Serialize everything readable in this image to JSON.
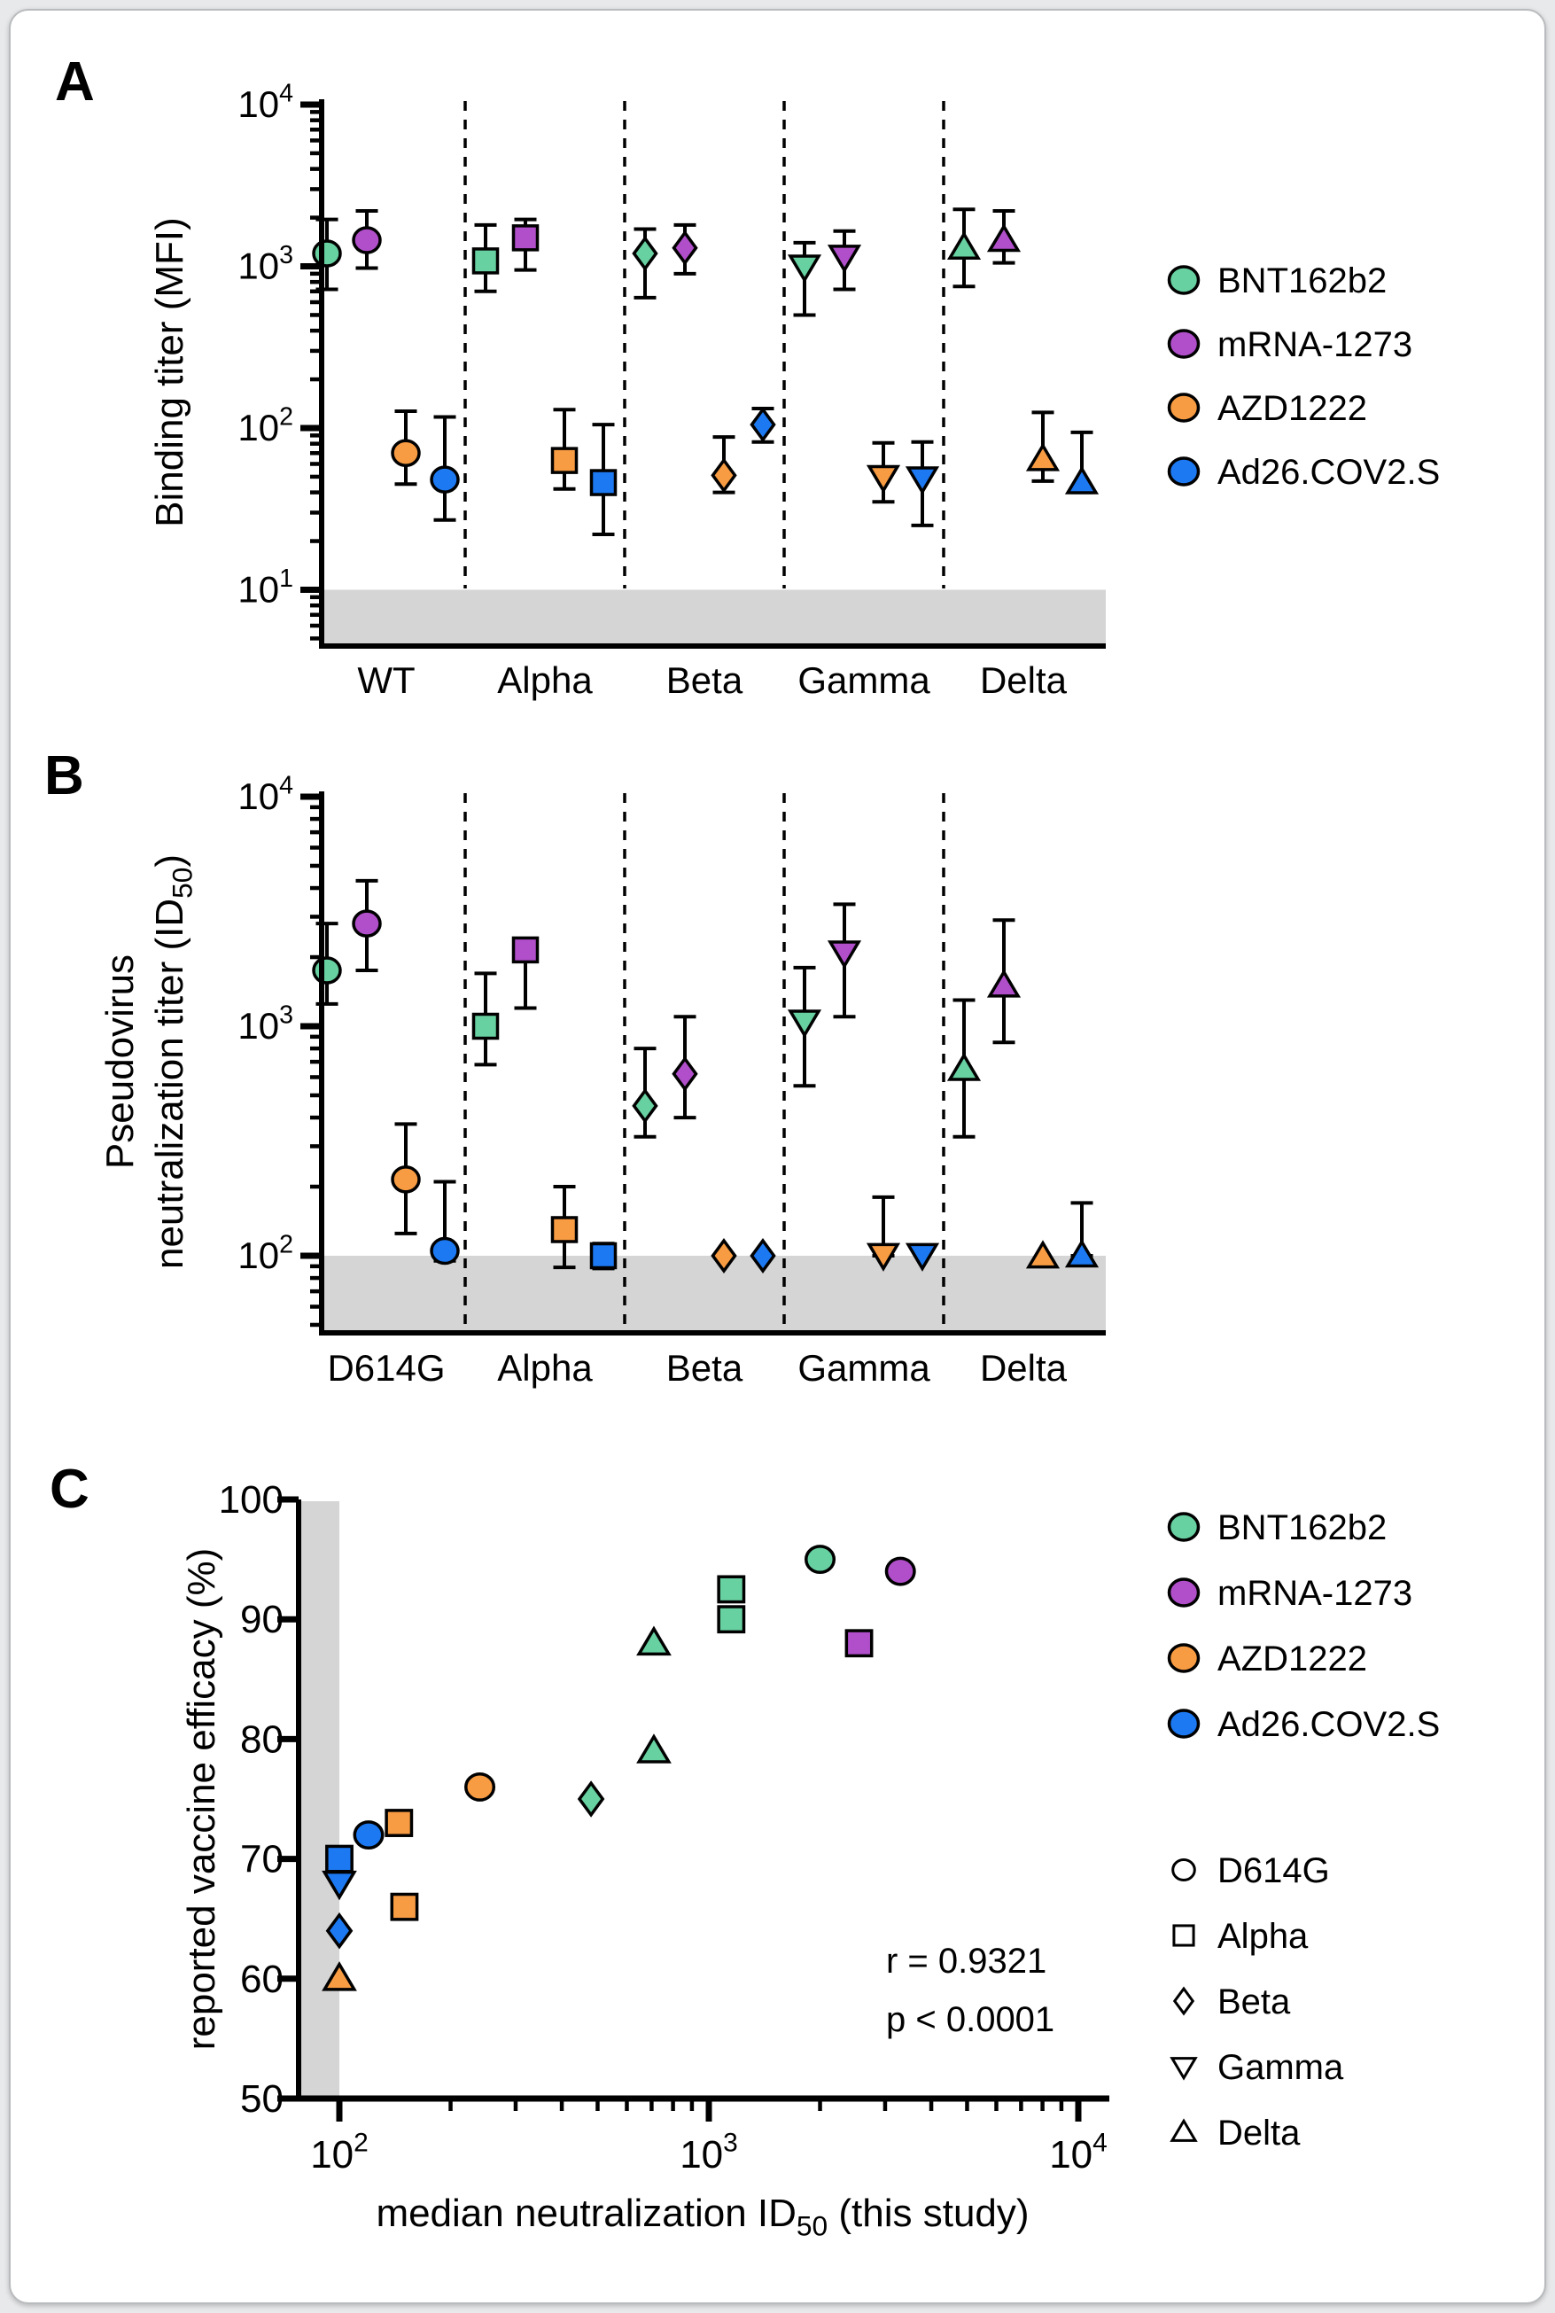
{
  "figure": {
    "background": "#e8e9eb",
    "card_background": "#ffffff",
    "band_color": "#d5d5d5",
    "axis_color": "#000000"
  },
  "colors": {
    "BNT162b2": "#68d1a1",
    "mRNA-1273": "#b14fcb",
    "AZD1222": "#f89c43",
    "Ad26.COV2.S": "#1c79f2"
  },
  "vaccines": [
    "BNT162b2",
    "mRNA-1273",
    "AZD1222",
    "Ad26.COV2.S"
  ],
  "chart_data": [
    {
      "panel": "A",
      "type": "scatter",
      "ylabel": "Binding titer (MFI)",
      "yscale": "log",
      "ylim": [
        4.5,
        10000
      ],
      "yticks": [
        "10^{1}",
        "10^{2}",
        "10^{3}",
        "10^{4}"
      ],
      "ytick_values": [
        10,
        100,
        1000,
        10000
      ],
      "detection_band_below": 10,
      "categories": [
        "WT",
        "Alpha",
        "Beta",
        "Gamma",
        "Delta"
      ],
      "category_shapes": [
        "circle",
        "square",
        "diamond",
        "triangle-down",
        "triangle-up"
      ],
      "legend": [
        "BNT162b2",
        "mRNA-1273",
        "AZD1222",
        "Ad26.COV2.S"
      ],
      "series": [
        {
          "name": "BNT162b2",
          "median": [
            1200,
            1080,
            1200,
            1000,
            1300
          ],
          "lo": [
            720,
            700,
            640,
            500,
            750
          ],
          "hi": [
            1950,
            1800,
            1700,
            1400,
            2250
          ]
        },
        {
          "name": "mRNA-1273",
          "median": [
            1450,
            1500,
            1300,
            1150,
            1450
          ],
          "lo": [
            975,
            950,
            900,
            720,
            1050
          ],
          "hi": [
            2200,
            1950,
            1800,
            1650,
            2200
          ]
        },
        {
          "name": "AZD1222",
          "median": [
            70,
            63,
            51,
            50,
            64
          ],
          "lo": [
            45,
            42,
            40,
            35,
            47
          ],
          "hi": [
            127,
            130,
            88,
            81,
            125
          ]
        },
        {
          "name": "Ad26.COV2.S",
          "median": [
            48,
            46,
            105,
            49,
            46
          ],
          "lo": [
            27,
            22,
            82,
            25,
            40
          ],
          "hi": [
            117,
            105,
            132,
            82,
            94
          ]
        }
      ]
    },
    {
      "panel": "B",
      "type": "scatter",
      "ylabel_lines": [
        "Pseudovirus",
        "neutralization titer (ID_{50})"
      ],
      "yscale": "log",
      "ylim": [
        45,
        10000
      ],
      "yticks": [
        "10^{2}",
        "10^{3}",
        "10^{4}"
      ],
      "ytick_values": [
        100,
        1000,
        10000
      ],
      "detection_band_below": 100,
      "categories": [
        "D614G",
        "Alpha",
        "Beta",
        "Gamma",
        "Delta"
      ],
      "category_shapes": [
        "circle",
        "square",
        "diamond",
        "triangle-down",
        "triangle-up"
      ],
      "series": [
        {
          "name": "BNT162b2",
          "median": [
            1750,
            1000,
            450,
            1050,
            650
          ],
          "lo": [
            1250,
            680,
            330,
            550,
            330
          ],
          "hi": [
            2800,
            1700,
            800,
            1800,
            1300
          ]
        },
        {
          "name": "mRNA-1273",
          "median": [
            2800,
            2150,
            620,
            2100,
            1500
          ],
          "lo": [
            1750,
            1200,
            400,
            1100,
            850
          ],
          "hi": [
            4300,
            2400,
            1100,
            3400,
            2900
          ]
        },
        {
          "name": "AZD1222",
          "median": [
            215,
            130,
            100,
            101,
            99
          ],
          "lo": [
            125,
            89,
            100,
            100,
            99
          ],
          "hi": [
            375,
            200,
            100,
            180,
            99
          ]
        },
        {
          "name": "Ad26.COV2.S",
          "median": [
            105,
            100,
            100,
            101,
            100
          ],
          "lo": [
            95,
            88,
            100,
            101,
            100
          ],
          "hi": [
            210,
            113,
            100,
            101,
            170
          ]
        }
      ]
    },
    {
      "panel": "C",
      "type": "scatter",
      "xlabel": "median neutralization ID_{50} (this study)",
      "ylabel": "reported vaccine efficacy (%)",
      "xscale": "log",
      "xlim": [
        100,
        10000
      ],
      "xticks": [
        "10^{2}",
        "10^{3}",
        "10^{4}"
      ],
      "xtick_values": [
        100,
        1000,
        10000
      ],
      "ylim": [
        50,
        100
      ],
      "yticks": [
        50,
        60,
        70,
        80,
        90,
        100
      ],
      "detection_band_left_of": 100,
      "annotation_lines": [
        "r = 0.9321",
        "p < 0.0001"
      ],
      "legend_vaccines": [
        "BNT162b2",
        "mRNA-1273",
        "AZD1222",
        "Ad26.COV2.S"
      ],
      "legend_variants": [
        {
          "label": "D614G",
          "shape": "circle"
        },
        {
          "label": "Alpha",
          "shape": "square"
        },
        {
          "label": "Beta",
          "shape": "diamond"
        },
        {
          "label": "Gamma",
          "shape": "triangle-down"
        },
        {
          "label": "Delta",
          "shape": "triangle-up"
        }
      ],
      "points": [
        {
          "vaccine": "BNT162b2",
          "variant": "D614G",
          "shape": "circle",
          "x": 2000,
          "y": 95
        },
        {
          "vaccine": "BNT162b2",
          "variant": "Alpha",
          "shape": "square",
          "x": 1150,
          "y": 92.5
        },
        {
          "vaccine": "BNT162b2",
          "variant": "Alpha",
          "shape": "square",
          "x": 1150,
          "y": 90
        },
        {
          "vaccine": "BNT162b2",
          "variant": "Delta",
          "shape": "triangle-up",
          "x": 710,
          "y": 88
        },
        {
          "vaccine": "BNT162b2",
          "variant": "Delta",
          "shape": "triangle-up",
          "x": 710,
          "y": 79
        },
        {
          "vaccine": "BNT162b2",
          "variant": "Beta",
          "shape": "diamond",
          "x": 480,
          "y": 75
        },
        {
          "vaccine": "mRNA-1273",
          "variant": "D614G",
          "shape": "circle",
          "x": 3300,
          "y": 94
        },
        {
          "vaccine": "mRNA-1273",
          "variant": "Alpha",
          "shape": "square",
          "x": 2550,
          "y": 88
        },
        {
          "vaccine": "AZD1222",
          "variant": "D614G",
          "shape": "circle",
          "x": 240,
          "y": 76
        },
        {
          "vaccine": "AZD1222",
          "variant": "Alpha",
          "shape": "square",
          "x": 145,
          "y": 73
        },
        {
          "vaccine": "AZD1222",
          "variant": "Alpha",
          "shape": "square",
          "x": 150,
          "y": 66
        },
        {
          "vaccine": "AZD1222",
          "variant": "Delta",
          "shape": "triangle-up",
          "x": 100,
          "y": 60
        },
        {
          "vaccine": "Ad26.COV2.S",
          "variant": "D614G",
          "shape": "circle",
          "x": 120,
          "y": 72
        },
        {
          "vaccine": "Ad26.COV2.S",
          "variant": "Alpha",
          "shape": "square",
          "x": 100,
          "y": 70
        },
        {
          "vaccine": "Ad26.COV2.S",
          "variant": "Gamma",
          "shape": "triangle-down",
          "x": 100,
          "y": 68
        },
        {
          "vaccine": "Ad26.COV2.S",
          "variant": "Beta",
          "shape": "diamond",
          "x": 100,
          "y": 64
        }
      ]
    }
  ]
}
